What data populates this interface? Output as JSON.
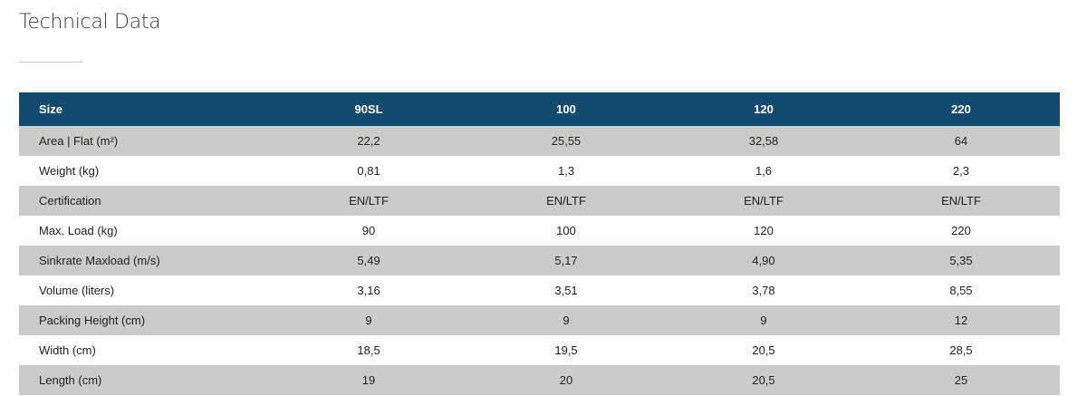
{
  "section": {
    "title": "Technical Data"
  },
  "colors": {
    "header_bg": "#134a70",
    "row_stripe": "#cbcbcb",
    "row_plain": "#ffffff"
  },
  "table": {
    "headers": [
      "Size",
      "90SL",
      "100",
      "120",
      "220"
    ],
    "rows": [
      [
        "Area | Flat (m²)",
        "22,2",
        "25,55",
        "32,58",
        "64"
      ],
      [
        "Weight (kg)",
        "0,81",
        "1,3",
        "1,6",
        "2,3"
      ],
      [
        "Certification",
        "EN/LTF",
        "EN/LTF",
        "EN/LTF",
        "EN/LTF"
      ],
      [
        "Max. Load (kg)",
        "90",
        "100",
        "120",
        "220"
      ],
      [
        "Sinkrate Maxload (m/s)",
        "5,49",
        "5,17",
        "4,90",
        "5,35"
      ],
      [
        "Volume (liters)",
        "3,16",
        "3,51",
        "3,78",
        "8,55"
      ],
      [
        "Packing Height (cm)",
        "9",
        "9",
        "9",
        "12"
      ],
      [
        "Width (cm)",
        "18,5",
        "19,5",
        "20,5",
        "28,5"
      ],
      [
        "Length (cm)",
        "19",
        "20",
        "20,5",
        "25"
      ]
    ]
  }
}
